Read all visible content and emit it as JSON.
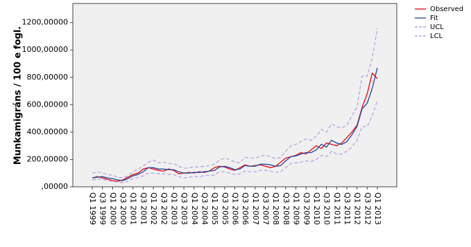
{
  "chart_data": {
    "type": "line",
    "y_label": "Munkamigráns / 100 e fogl.",
    "categories": [
      "Q1 1999",
      null,
      "Q3 1999",
      null,
      "Q1 2000",
      null,
      "Q3 2000",
      null,
      "Q1 2001",
      null,
      "Q3 2001",
      null,
      "Q1 2002",
      null,
      "Q3 2002",
      null,
      "Q1 2003",
      null,
      "Q3 2003",
      null,
      "Q1 2004",
      null,
      "Q3 2004",
      null,
      "Q1 2005",
      null,
      "Q3 2005",
      null,
      "Q1 2006",
      null,
      "Q3 2006",
      null,
      "Q1 2007",
      null,
      "Q3 2007",
      null,
      "Q1 2008",
      null,
      "Q3 2008",
      null,
      "Q1 2009",
      null,
      "Q3 2009",
      null,
      "Q1 2010",
      null,
      "Q3 2010",
      null,
      "Q1 2011",
      null,
      "Q3 2011",
      null,
      "Q1 2012",
      null,
      "Q3 2012",
      null,
      "Q1 2013"
    ],
    "series": [
      {
        "name": "Observed",
        "color": "#e8141b",
        "dashed": false,
        "values": [
          65,
          75,
          65,
          55,
          45,
          40,
          50,
          70,
          90,
          100,
          130,
          140,
          130,
          120,
          115,
          130,
          120,
          95,
          100,
          105,
          100,
          110,
          105,
          115,
          140,
          150,
          145,
          130,
          120,
          140,
          160,
          150,
          155,
          160,
          150,
          140,
          150,
          180,
          210,
          220,
          230,
          250,
          240,
          270,
          300,
          280,
          320,
          310,
          300,
          320,
          360,
          400,
          450,
          580,
          680,
          830,
          790
        ]
      },
      {
        "name": "Fit",
        "color": "#2b4fa0",
        "dashed": false,
        "values": [
          65,
          70,
          75,
          65,
          60,
          50,
          45,
          60,
          80,
          90,
          110,
          140,
          140,
          130,
          130,
          125,
          125,
          110,
          100,
          100,
          105,
          105,
          110,
          115,
          120,
          145,
          150,
          140,
          125,
          130,
          155,
          150,
          150,
          165,
          165,
          160,
          150,
          155,
          190,
          220,
          225,
          240,
          250,
          250,
          270,
          310,
          290,
          340,
          320,
          310,
          330,
          380,
          440,
          570,
          610,
          720,
          870
        ]
      },
      {
        "name": "UCL",
        "color": "#b8a4dc",
        "dashed": true,
        "values": [
          100,
          110,
          100,
          90,
          85,
          70,
          65,
          80,
          110,
          130,
          150,
          180,
          195,
          175,
          180,
          170,
          170,
          150,
          135,
          140,
          145,
          145,
          150,
          155,
          165,
          195,
          210,
          200,
          180,
          175,
          215,
          210,
          210,
          225,
          230,
          220,
          205,
          215,
          260,
          300,
          310,
          330,
          350,
          340,
          370,
          420,
          400,
          460,
          440,
          430,
          450,
          520,
          580,
          810,
          810,
          940,
          1160
        ]
      },
      {
        "name": "LCL",
        "color": "#b8a4dc",
        "dashed": true,
        "values": [
          50,
          55,
          55,
          45,
          40,
          35,
          30,
          40,
          60,
          70,
          80,
          100,
          100,
          95,
          95,
          90,
          90,
          75,
          65,
          70,
          75,
          75,
          80,
          85,
          85,
          110,
          110,
          100,
          90,
          95,
          115,
          110,
          110,
          120,
          120,
          115,
          105,
          110,
          140,
          170,
          175,
          180,
          190,
          185,
          200,
          230,
          220,
          260,
          240,
          240,
          260,
          290,
          340,
          440,
          440,
          520,
          630
        ]
      }
    ],
    "ylim": [
      0,
      1340
    ],
    "yticks": [
      {
        "value": 0,
        "label": ",00000"
      },
      {
        "value": 200,
        "label": "200,00000"
      },
      {
        "value": 400,
        "label": "400,00000"
      },
      {
        "value": 600,
        "label": "600,00000"
      },
      {
        "value": 800,
        "label": "800,00000"
      },
      {
        "value": 1000,
        "label": "1000,00000"
      },
      {
        "value": 1200,
        "label": "1200,00000"
      }
    ],
    "legend": "top-right-outside"
  }
}
